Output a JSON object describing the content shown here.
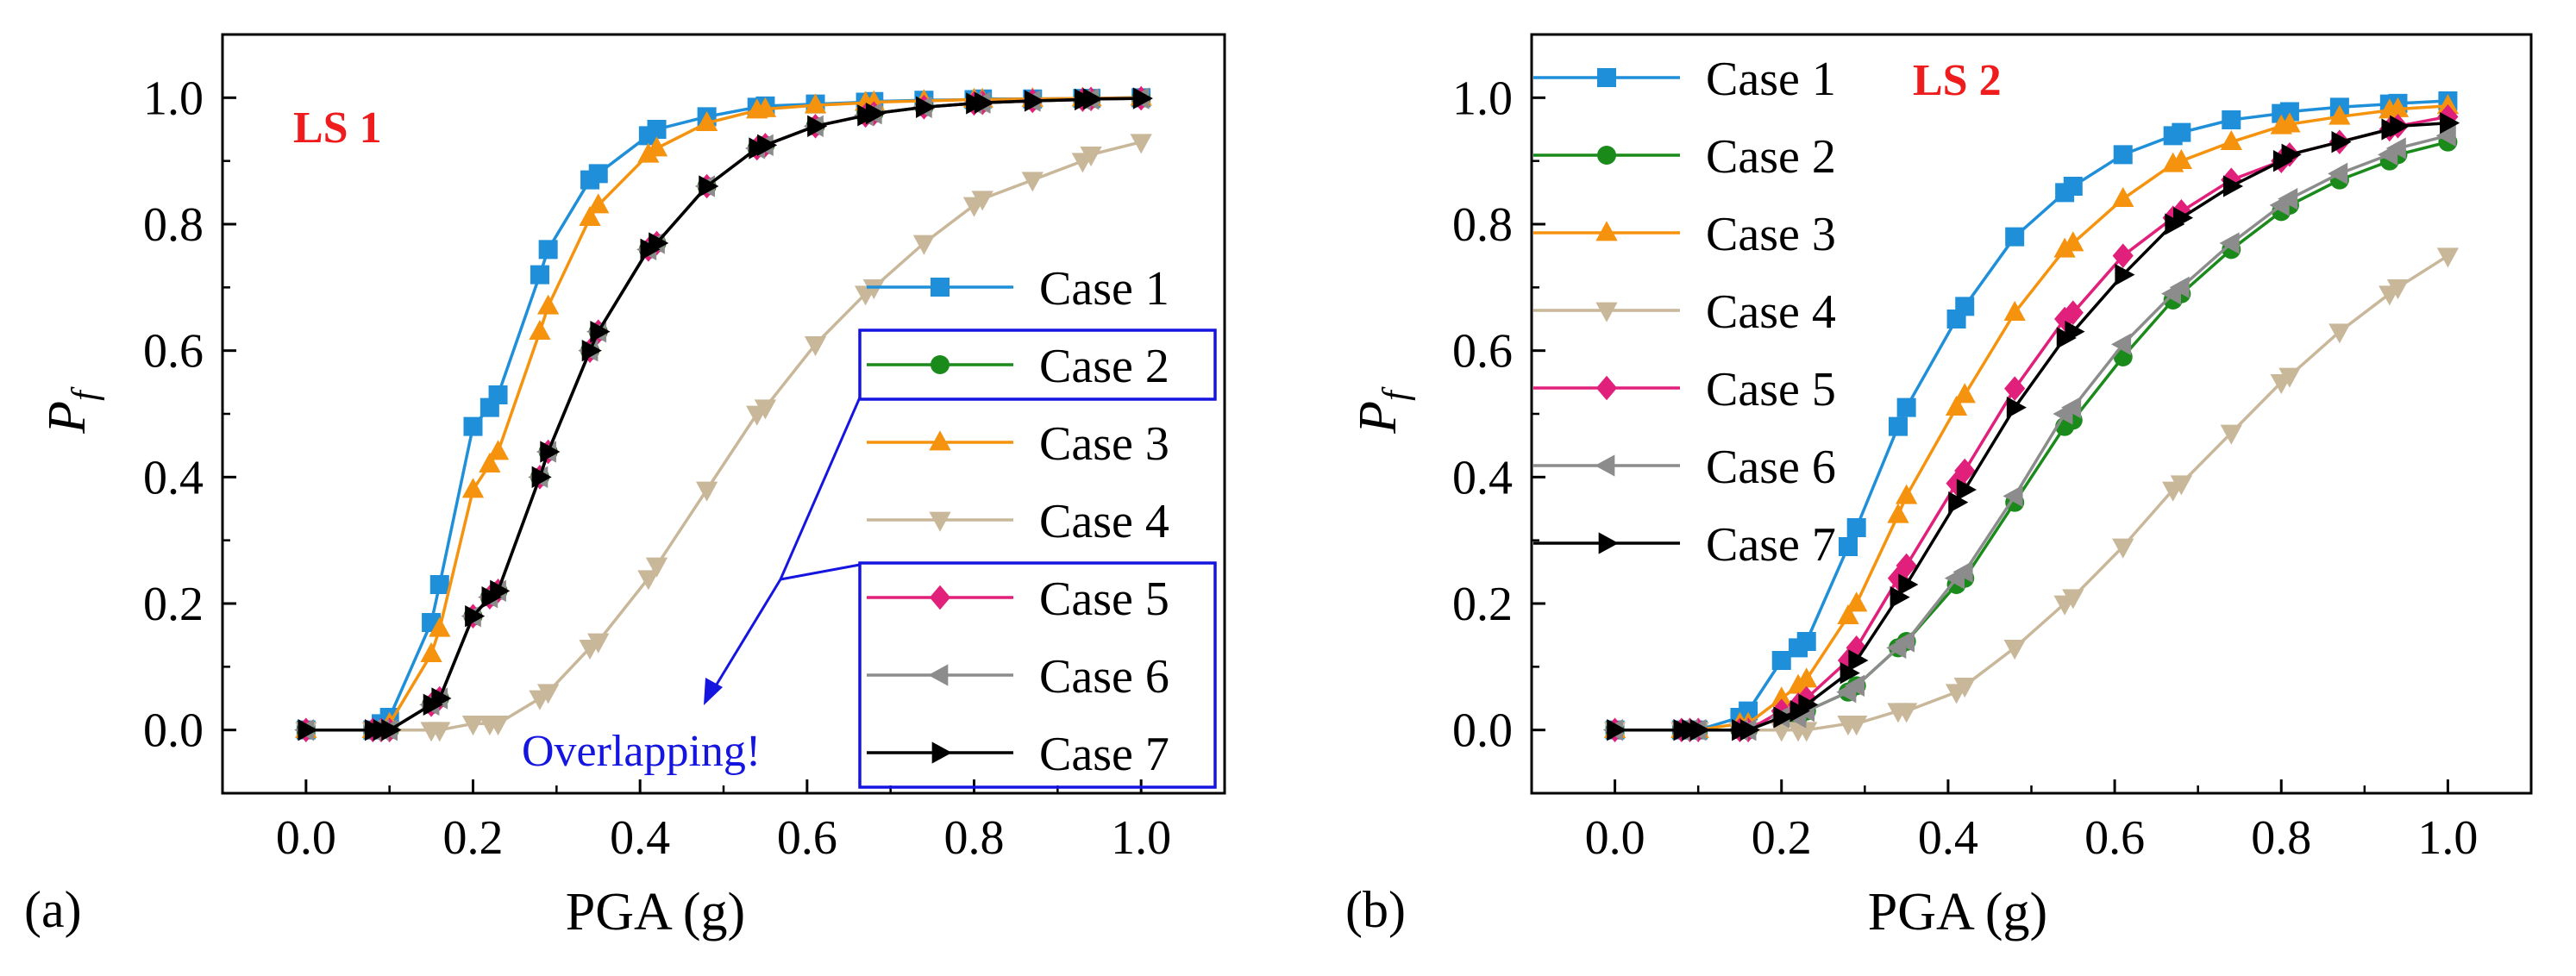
{
  "figure": {
    "series_names": [
      "Case 1",
      "Case 2",
      "Case 3",
      "Case 4",
      "Case 5",
      "Case 6",
      "Case 7"
    ],
    "series_colors": [
      "#1e8fd8",
      "#1a8a1a",
      "#f5930f",
      "#c9b79a",
      "#e0207a",
      "#8c8c8c",
      "#000000"
    ],
    "markers": [
      "square",
      "circle",
      "triangle-up",
      "triangle-down",
      "diamond",
      "triangle-left",
      "triangle-right"
    ],
    "ls_color": "#ee1c1c",
    "annotation_color": "#1515e0"
  },
  "chart_data": [
    {
      "type": "line",
      "panel_label": "(a)",
      "title": "LS 1",
      "xlabel": "PGA (g)",
      "ylabel_main": "P",
      "ylabel_sub": "f",
      "xlim": [
        -0.1,
        1.1
      ],
      "ylim": [
        -0.1,
        1.1
      ],
      "xticks": [
        0.0,
        0.2,
        0.4,
        0.6,
        0.8,
        1.0
      ],
      "xtick_labels": [
        "0.0",
        "0.2",
        "0.4",
        "0.6",
        "0.8",
        "1.0"
      ],
      "yticks": [
        0.0,
        0.2,
        0.4,
        0.6,
        0.8,
        1.0
      ],
      "ytick_labels": [
        "0.0",
        "0.2",
        "0.4",
        "0.6",
        "0.8",
        "1.0"
      ],
      "legend_position": "right",
      "annotation": "Overlapping!",
      "series": [
        {
          "name": "Case 1",
          "x": [
            0.0,
            0.08,
            0.09,
            0.1,
            0.15,
            0.16,
            0.2,
            0.22,
            0.23,
            0.28,
            0.29,
            0.34,
            0.35,
            0.41,
            0.42,
            0.48,
            0.54,
            0.55,
            0.61,
            0.67,
            0.68,
            0.74,
            0.8,
            0.81,
            0.87,
            0.93,
            0.94,
            1.0
          ],
          "values": [
            0.0,
            0.0,
            0.01,
            0.02,
            0.17,
            0.23,
            0.48,
            0.51,
            0.53,
            0.72,
            0.76,
            0.87,
            0.88,
            0.94,
            0.95,
            0.97,
            0.985,
            0.987,
            0.99,
            0.993,
            0.994,
            0.996,
            0.997,
            0.998,
            0.998,
            0.999,
            0.999,
            1.0
          ]
        },
        {
          "name": "Case 2",
          "x": [
            0.0,
            0.08,
            0.09,
            0.1,
            0.15,
            0.16,
            0.2,
            0.22,
            0.23,
            0.28,
            0.29,
            0.34,
            0.35,
            0.41,
            0.42,
            0.48,
            0.54,
            0.55,
            0.61,
            0.67,
            0.68,
            0.74,
            0.8,
            0.81,
            0.87,
            0.93,
            0.94,
            1.0
          ],
          "values": [
            0.0,
            0.0,
            0.0,
            0.0,
            0.04,
            0.05,
            0.18,
            0.21,
            0.22,
            0.4,
            0.44,
            0.6,
            0.63,
            0.76,
            0.77,
            0.86,
            0.92,
            0.925,
            0.955,
            0.972,
            0.975,
            0.985,
            0.991,
            0.992,
            0.995,
            0.997,
            0.998,
            0.999
          ]
        },
        {
          "name": "Case 3",
          "x": [
            0.0,
            0.08,
            0.09,
            0.1,
            0.15,
            0.16,
            0.2,
            0.22,
            0.23,
            0.28,
            0.29,
            0.34,
            0.35,
            0.41,
            0.42,
            0.48,
            0.54,
            0.55,
            0.61,
            0.67,
            0.68,
            0.74,
            0.8,
            0.81,
            0.87,
            0.93,
            0.94,
            1.0
          ],
          "values": [
            0.0,
            0.0,
            0.0,
            0.01,
            0.12,
            0.16,
            0.38,
            0.42,
            0.44,
            0.63,
            0.67,
            0.81,
            0.83,
            0.91,
            0.92,
            0.96,
            0.98,
            0.982,
            0.988,
            0.992,
            0.993,
            0.995,
            0.997,
            0.997,
            0.998,
            0.999,
            0.999,
            1.0
          ]
        },
        {
          "name": "Case 4",
          "x": [
            0.0,
            0.08,
            0.09,
            0.1,
            0.15,
            0.16,
            0.2,
            0.22,
            0.23,
            0.28,
            0.29,
            0.34,
            0.35,
            0.41,
            0.42,
            0.48,
            0.54,
            0.55,
            0.61,
            0.67,
            0.68,
            0.74,
            0.8,
            0.81,
            0.87,
            0.93,
            0.94,
            1.0
          ],
          "values": [
            0.0,
            0.0,
            0.0,
            0.0,
            0.0,
            0.0,
            0.01,
            0.01,
            0.01,
            0.05,
            0.06,
            0.13,
            0.14,
            0.24,
            0.26,
            0.38,
            0.5,
            0.51,
            0.61,
            0.69,
            0.7,
            0.77,
            0.83,
            0.84,
            0.87,
            0.9,
            0.91,
            0.93
          ]
        },
        {
          "name": "Case 5",
          "x": [
            0.0,
            0.08,
            0.09,
            0.1,
            0.15,
            0.16,
            0.2,
            0.22,
            0.23,
            0.28,
            0.29,
            0.34,
            0.35,
            0.41,
            0.42,
            0.48,
            0.54,
            0.55,
            0.61,
            0.67,
            0.68,
            0.74,
            0.8,
            0.81,
            0.87,
            0.93,
            0.94,
            1.0
          ],
          "values": [
            0.0,
            0.0,
            0.0,
            0.0,
            0.04,
            0.05,
            0.18,
            0.21,
            0.22,
            0.4,
            0.44,
            0.6,
            0.63,
            0.76,
            0.77,
            0.86,
            0.92,
            0.925,
            0.955,
            0.972,
            0.975,
            0.985,
            0.991,
            0.992,
            0.995,
            0.997,
            0.998,
            0.999
          ]
        },
        {
          "name": "Case 6",
          "x": [
            0.0,
            0.08,
            0.09,
            0.1,
            0.15,
            0.16,
            0.2,
            0.22,
            0.23,
            0.28,
            0.29,
            0.34,
            0.35,
            0.41,
            0.42,
            0.48,
            0.54,
            0.55,
            0.61,
            0.67,
            0.68,
            0.74,
            0.8,
            0.81,
            0.87,
            0.93,
            0.94,
            1.0
          ],
          "values": [
            0.0,
            0.0,
            0.0,
            0.0,
            0.04,
            0.05,
            0.18,
            0.21,
            0.22,
            0.4,
            0.44,
            0.6,
            0.63,
            0.76,
            0.77,
            0.86,
            0.92,
            0.925,
            0.955,
            0.972,
            0.975,
            0.985,
            0.991,
            0.992,
            0.995,
            0.997,
            0.998,
            0.999
          ]
        },
        {
          "name": "Case 7",
          "x": [
            0.0,
            0.08,
            0.09,
            0.1,
            0.15,
            0.16,
            0.2,
            0.22,
            0.23,
            0.28,
            0.29,
            0.34,
            0.35,
            0.41,
            0.42,
            0.48,
            0.54,
            0.55,
            0.61,
            0.67,
            0.68,
            0.74,
            0.8,
            0.81,
            0.87,
            0.93,
            0.94,
            1.0
          ],
          "values": [
            0.0,
            0.0,
            0.0,
            0.0,
            0.04,
            0.05,
            0.18,
            0.21,
            0.22,
            0.4,
            0.44,
            0.6,
            0.63,
            0.76,
            0.77,
            0.86,
            0.92,
            0.925,
            0.955,
            0.972,
            0.975,
            0.985,
            0.991,
            0.992,
            0.995,
            0.997,
            0.998,
            0.999
          ]
        }
      ]
    },
    {
      "type": "line",
      "panel_label": "(b)",
      "title": "LS 2",
      "xlabel": "PGA (g)",
      "ylabel_main": "P",
      "ylabel_sub": "f",
      "xlim": [
        -0.1,
        1.1
      ],
      "ylim": [
        -0.1,
        1.1
      ],
      "xticks": [
        0.0,
        0.2,
        0.4,
        0.6,
        0.8,
        1.0
      ],
      "xtick_labels": [
        "0.0",
        "0.2",
        "0.4",
        "0.6",
        "0.8",
        "1.0"
      ],
      "yticks": [
        0.0,
        0.2,
        0.4,
        0.6,
        0.8,
        1.0
      ],
      "ytick_labels": [
        "0.0",
        "0.2",
        "0.4",
        "0.6",
        "0.8",
        "1.0"
      ],
      "legend_position": "top-left",
      "series": [
        {
          "name": "Case 1",
          "x": [
            0.0,
            0.08,
            0.09,
            0.1,
            0.15,
            0.16,
            0.2,
            0.22,
            0.23,
            0.28,
            0.29,
            0.34,
            0.35,
            0.41,
            0.42,
            0.48,
            0.54,
            0.55,
            0.61,
            0.67,
            0.68,
            0.74,
            0.8,
            0.81,
            0.87,
            0.93,
            0.94,
            1.0
          ],
          "values": [
            0.0,
            0.0,
            0.0,
            0.0,
            0.02,
            0.03,
            0.11,
            0.13,
            0.14,
            0.29,
            0.32,
            0.48,
            0.51,
            0.65,
            0.67,
            0.78,
            0.85,
            0.86,
            0.91,
            0.94,
            0.945,
            0.965,
            0.975,
            0.978,
            0.985,
            0.99,
            0.991,
            0.995
          ]
        },
        {
          "name": "Case 2",
          "x": [
            0.0,
            0.08,
            0.09,
            0.1,
            0.15,
            0.16,
            0.2,
            0.22,
            0.23,
            0.28,
            0.29,
            0.34,
            0.35,
            0.41,
            0.42,
            0.48,
            0.54,
            0.55,
            0.61,
            0.67,
            0.68,
            0.74,
            0.8,
            0.81,
            0.87,
            0.93,
            0.94,
            1.0
          ],
          "values": [
            0.0,
            0.0,
            0.0,
            0.0,
            0.0,
            0.0,
            0.02,
            0.02,
            0.03,
            0.06,
            0.07,
            0.13,
            0.14,
            0.23,
            0.24,
            0.36,
            0.48,
            0.49,
            0.59,
            0.68,
            0.69,
            0.76,
            0.82,
            0.83,
            0.87,
            0.9,
            0.91,
            0.93
          ]
        },
        {
          "name": "Case 3",
          "x": [
            0.0,
            0.08,
            0.09,
            0.1,
            0.15,
            0.16,
            0.2,
            0.22,
            0.23,
            0.28,
            0.29,
            0.34,
            0.35,
            0.41,
            0.42,
            0.48,
            0.54,
            0.55,
            0.61,
            0.67,
            0.68,
            0.74,
            0.8,
            0.81,
            0.87,
            0.93,
            0.94,
            1.0
          ],
          "values": [
            0.0,
            0.0,
            0.0,
            0.0,
            0.01,
            0.01,
            0.05,
            0.07,
            0.08,
            0.18,
            0.2,
            0.34,
            0.37,
            0.51,
            0.53,
            0.66,
            0.76,
            0.77,
            0.84,
            0.895,
            0.9,
            0.93,
            0.955,
            0.958,
            0.97,
            0.98,
            0.982,
            0.987
          ]
        },
        {
          "name": "Case 4",
          "x": [
            0.0,
            0.08,
            0.09,
            0.1,
            0.15,
            0.16,
            0.2,
            0.22,
            0.23,
            0.28,
            0.29,
            0.34,
            0.35,
            0.41,
            0.42,
            0.48,
            0.54,
            0.55,
            0.61,
            0.67,
            0.68,
            0.74,
            0.8,
            0.81,
            0.87,
            0.93,
            0.94,
            1.0
          ],
          "values": [
            0.0,
            0.0,
            0.0,
            0.0,
            0.0,
            0.0,
            0.0,
            0.0,
            0.0,
            0.01,
            0.01,
            0.03,
            0.03,
            0.06,
            0.07,
            0.13,
            0.2,
            0.21,
            0.29,
            0.38,
            0.39,
            0.47,
            0.55,
            0.56,
            0.63,
            0.69,
            0.7,
            0.75
          ]
        },
        {
          "name": "Case 5",
          "x": [
            0.0,
            0.08,
            0.09,
            0.1,
            0.15,
            0.16,
            0.2,
            0.22,
            0.23,
            0.28,
            0.29,
            0.34,
            0.35,
            0.41,
            0.42,
            0.48,
            0.54,
            0.55,
            0.61,
            0.67,
            0.68,
            0.74,
            0.8,
            0.81,
            0.87,
            0.93,
            0.94,
            1.0
          ],
          "values": [
            0.0,
            0.0,
            0.0,
            0.0,
            0.0,
            0.0,
            0.03,
            0.04,
            0.05,
            0.11,
            0.13,
            0.24,
            0.26,
            0.39,
            0.41,
            0.54,
            0.65,
            0.66,
            0.75,
            0.81,
            0.82,
            0.87,
            0.9,
            0.91,
            0.93,
            0.95,
            0.955,
            0.97
          ]
        },
        {
          "name": "Case 6",
          "x": [
            0.0,
            0.08,
            0.09,
            0.1,
            0.15,
            0.16,
            0.2,
            0.22,
            0.23,
            0.28,
            0.29,
            0.34,
            0.35,
            0.41,
            0.42,
            0.48,
            0.54,
            0.55,
            0.61,
            0.67,
            0.68,
            0.74,
            0.8,
            0.81,
            0.87,
            0.93,
            0.94,
            1.0
          ],
          "values": [
            0.0,
            0.0,
            0.0,
            0.0,
            0.0,
            0.0,
            0.02,
            0.02,
            0.03,
            0.06,
            0.07,
            0.13,
            0.14,
            0.24,
            0.25,
            0.37,
            0.5,
            0.51,
            0.61,
            0.69,
            0.7,
            0.77,
            0.83,
            0.84,
            0.88,
            0.91,
            0.92,
            0.94
          ]
        },
        {
          "name": "Case 7",
          "x": [
            0.0,
            0.08,
            0.09,
            0.1,
            0.15,
            0.16,
            0.2,
            0.22,
            0.23,
            0.28,
            0.29,
            0.34,
            0.35,
            0.41,
            0.42,
            0.48,
            0.54,
            0.55,
            0.61,
            0.67,
            0.68,
            0.74,
            0.8,
            0.81,
            0.87,
            0.93,
            0.94,
            1.0
          ],
          "values": [
            0.0,
            0.0,
            0.0,
            0.0,
            0.0,
            0.0,
            0.02,
            0.03,
            0.04,
            0.09,
            0.11,
            0.21,
            0.23,
            0.36,
            0.38,
            0.51,
            0.62,
            0.63,
            0.72,
            0.8,
            0.81,
            0.86,
            0.9,
            0.91,
            0.93,
            0.95,
            0.955,
            0.96
          ]
        }
      ]
    }
  ]
}
